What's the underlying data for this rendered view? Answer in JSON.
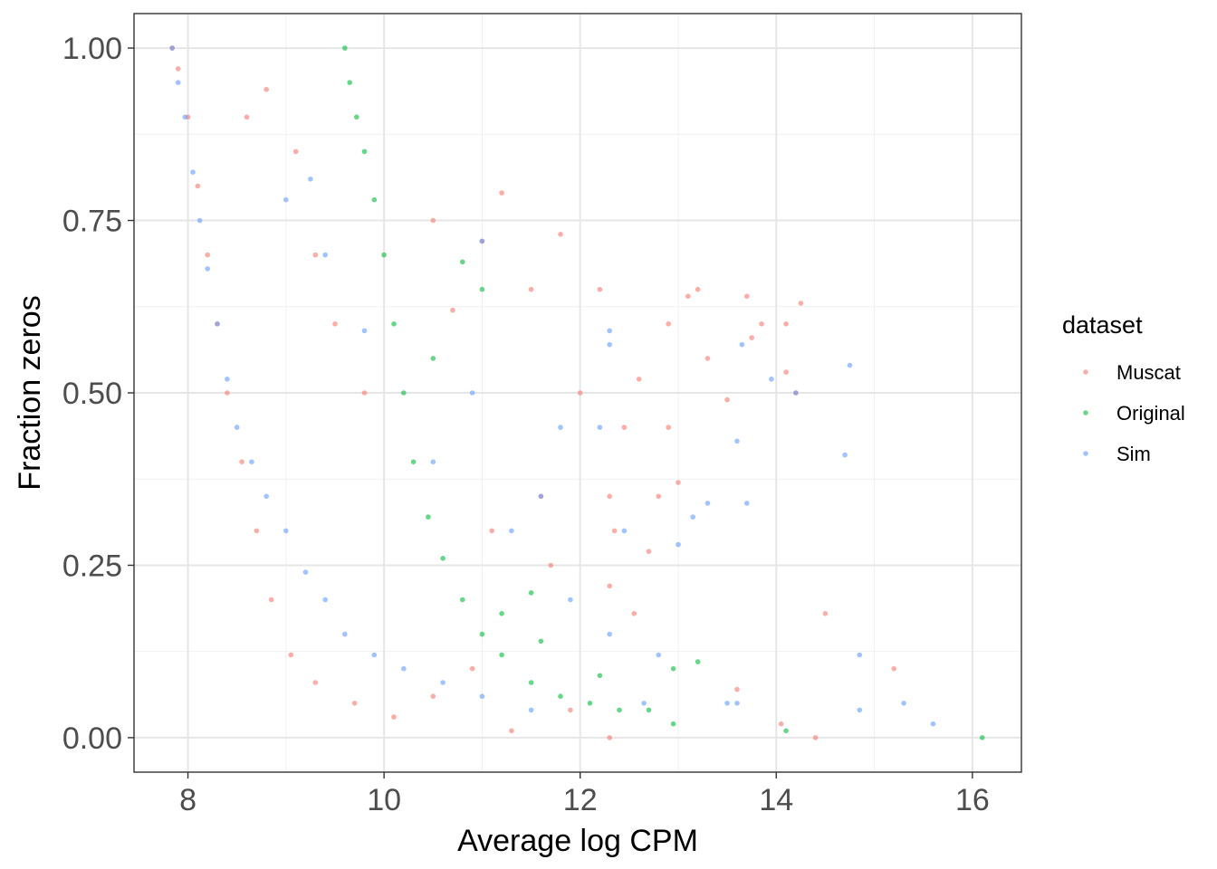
{
  "chart_data": {
    "type": "scatter",
    "xlabel": "Average log CPM",
    "ylabel": "Fraction zeros",
    "xlim": [
      7.45,
      16.5
    ],
    "ylim": [
      -0.05,
      1.05
    ],
    "x_ticks": [
      8,
      10,
      12,
      14,
      16
    ],
    "x_tick_labels": [
      "8",
      "10",
      "12",
      "14",
      "16"
    ],
    "y_ticks": [
      0.0,
      0.25,
      0.5,
      0.75,
      1.0
    ],
    "y_tick_labels": [
      "0.00",
      "0.25",
      "0.50",
      "0.75",
      "1.00"
    ],
    "grid": true,
    "legend": {
      "title": "dataset",
      "position": "right",
      "entries": [
        {
          "name": "Muscat",
          "color": "#F8766D"
        },
        {
          "name": "Original",
          "color": "#00BA38"
        },
        {
          "name": "Sim",
          "color": "#619CFF"
        }
      ]
    },
    "series": [
      {
        "name": "Muscat",
        "color": "#F8766D",
        "points": [
          [
            7.84,
            1.0
          ],
          [
            7.9,
            0.97
          ],
          [
            8.0,
            0.9
          ],
          [
            8.1,
            0.8
          ],
          [
            8.2,
            0.7
          ],
          [
            8.3,
            0.6
          ],
          [
            8.4,
            0.5
          ],
          [
            8.55,
            0.4
          ],
          [
            8.7,
            0.3
          ],
          [
            8.85,
            0.2
          ],
          [
            9.05,
            0.12
          ],
          [
            9.3,
            0.08
          ],
          [
            9.7,
            0.05
          ],
          [
            10.1,
            0.03
          ],
          [
            8.8,
            0.94
          ],
          [
            9.1,
            0.85
          ],
          [
            8.6,
            0.9
          ],
          [
            9.3,
            0.7
          ],
          [
            9.5,
            0.6
          ],
          [
            9.8,
            0.5
          ],
          [
            10.5,
            0.75
          ],
          [
            10.7,
            0.62
          ],
          [
            11.0,
            0.72
          ],
          [
            11.2,
            0.79
          ],
          [
            11.8,
            0.73
          ],
          [
            11.5,
            0.65
          ],
          [
            11.6,
            0.35
          ],
          [
            12.2,
            0.65
          ],
          [
            12.0,
            0.5
          ],
          [
            12.3,
            0.35
          ],
          [
            12.3,
            0.0
          ],
          [
            12.45,
            0.45
          ],
          [
            12.6,
            0.52
          ],
          [
            12.7,
            0.27
          ],
          [
            12.8,
            0.35
          ],
          [
            12.9,
            0.6
          ],
          [
            12.9,
            0.45
          ],
          [
            13.1,
            0.64
          ],
          [
            13.2,
            0.65
          ],
          [
            13.3,
            0.55
          ],
          [
            13.5,
            0.49
          ],
          [
            13.6,
            0.07
          ],
          [
            13.7,
            0.64
          ],
          [
            13.85,
            0.6
          ],
          [
            13.75,
            0.58
          ],
          [
            14.1,
            0.6
          ],
          [
            14.1,
            0.53
          ],
          [
            14.2,
            0.5
          ],
          [
            14.25,
            0.63
          ],
          [
            14.05,
            0.02
          ],
          [
            14.4,
            0.0
          ],
          [
            14.5,
            0.18
          ],
          [
            15.2,
            0.1
          ],
          [
            11.9,
            0.04
          ],
          [
            11.3,
            0.01
          ],
          [
            10.5,
            0.06
          ],
          [
            10.9,
            0.1
          ],
          [
            11.1,
            0.3
          ],
          [
            11.7,
            0.25
          ],
          [
            12.3,
            0.22
          ],
          [
            12.55,
            0.18
          ],
          [
            12.35,
            0.3
          ],
          [
            13.0,
            0.37
          ]
        ]
      },
      {
        "name": "Original",
        "color": "#00BA38",
        "points": [
          [
            9.6,
            1.0
          ],
          [
            9.65,
            0.95
          ],
          [
            9.72,
            0.9
          ],
          [
            9.8,
            0.85
          ],
          [
            9.9,
            0.78
          ],
          [
            10.0,
            0.7
          ],
          [
            10.1,
            0.6
          ],
          [
            10.2,
            0.5
          ],
          [
            10.3,
            0.4
          ],
          [
            10.45,
            0.32
          ],
          [
            10.6,
            0.26
          ],
          [
            10.8,
            0.2
          ],
          [
            11.0,
            0.15
          ],
          [
            11.2,
            0.12
          ],
          [
            11.5,
            0.08
          ],
          [
            11.8,
            0.06
          ],
          [
            12.1,
            0.05
          ],
          [
            12.4,
            0.04
          ],
          [
            12.7,
            0.04
          ],
          [
            12.95,
            0.1
          ],
          [
            12.95,
            0.02
          ],
          [
            13.2,
            0.11
          ],
          [
            14.1,
            0.01
          ],
          [
            16.1,
            0.0
          ],
          [
            10.8,
            0.69
          ],
          [
            10.5,
            0.55
          ],
          [
            11.0,
            0.65
          ],
          [
            11.5,
            0.21
          ],
          [
            11.6,
            0.14
          ],
          [
            12.2,
            0.09
          ],
          [
            11.2,
            0.18
          ]
        ]
      },
      {
        "name": "Sim",
        "color": "#619CFF",
        "points": [
          [
            7.84,
            1.0
          ],
          [
            7.9,
            0.95
          ],
          [
            7.97,
            0.9
          ],
          [
            8.05,
            0.82
          ],
          [
            8.12,
            0.75
          ],
          [
            8.2,
            0.68
          ],
          [
            8.3,
            0.6
          ],
          [
            8.4,
            0.52
          ],
          [
            8.5,
            0.45
          ],
          [
            8.65,
            0.4
          ],
          [
            8.8,
            0.35
          ],
          [
            9.0,
            0.3
          ],
          [
            9.2,
            0.24
          ],
          [
            9.4,
            0.2
          ],
          [
            9.6,
            0.15
          ],
          [
            9.9,
            0.12
          ],
          [
            10.2,
            0.1
          ],
          [
            10.6,
            0.08
          ],
          [
            11.0,
            0.06
          ],
          [
            11.5,
            0.04
          ],
          [
            9.25,
            0.81
          ],
          [
            9.0,
            0.78
          ],
          [
            9.4,
            0.7
          ],
          [
            9.8,
            0.59
          ],
          [
            10.5,
            0.4
          ],
          [
            10.9,
            0.5
          ],
          [
            11.0,
            0.72
          ],
          [
            11.3,
            0.3
          ],
          [
            11.6,
            0.35
          ],
          [
            11.8,
            0.45
          ],
          [
            12.2,
            0.45
          ],
          [
            12.3,
            0.59
          ],
          [
            12.3,
            0.57
          ],
          [
            13.0,
            0.28
          ],
          [
            13.15,
            0.32
          ],
          [
            13.3,
            0.34
          ],
          [
            13.7,
            0.34
          ],
          [
            13.6,
            0.43
          ],
          [
            13.65,
            0.57
          ],
          [
            13.95,
            0.52
          ],
          [
            14.2,
            0.5
          ],
          [
            14.7,
            0.41
          ],
          [
            14.75,
            0.54
          ],
          [
            14.85,
            0.12
          ],
          [
            13.5,
            0.05
          ],
          [
            13.6,
            0.05
          ],
          [
            14.85,
            0.04
          ],
          [
            15.3,
            0.05
          ],
          [
            15.6,
            0.02
          ],
          [
            12.3,
            0.15
          ],
          [
            12.65,
            0.05
          ],
          [
            12.8,
            0.12
          ],
          [
            11.9,
            0.2
          ],
          [
            12.45,
            0.3
          ]
        ]
      }
    ]
  }
}
